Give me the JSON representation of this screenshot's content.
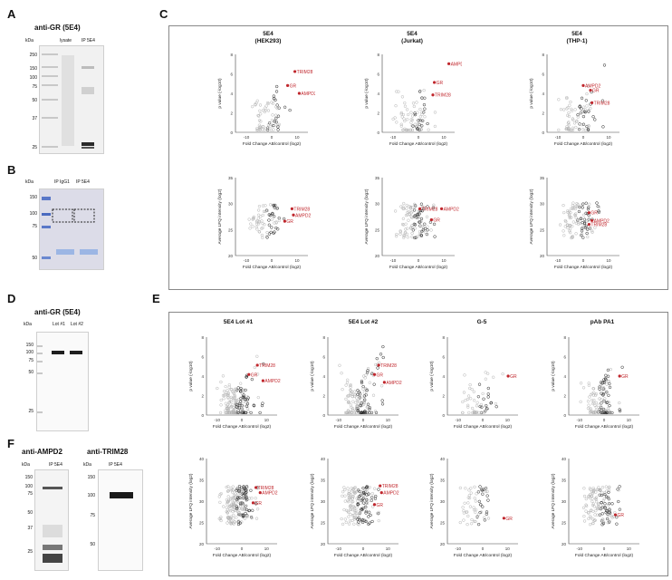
{
  "panels": {
    "A": {
      "letter": "A",
      "title": "anti-GR (5E4)",
      "kda": "kDa",
      "lanes": [
        "lysate",
        "IP 5E4"
      ],
      "mw": [
        "250",
        "150",
        "100",
        "75",
        "50",
        "37",
        "25"
      ]
    },
    "B": {
      "letter": "B",
      "kda": "kDa",
      "lanes": [
        "IP IgG1",
        "IP 5E4"
      ],
      "mw": [
        "150",
        "100",
        "75",
        "50"
      ]
    },
    "C": {
      "letter": "C",
      "plots": [
        {
          "head": "5E4",
          "sub": "(HEK293)"
        },
        {
          "head": "5E4",
          "sub": "(Jurkat)"
        },
        {
          "head": "5E4",
          "sub": "(THP-1)"
        }
      ]
    },
    "D": {
      "letter": "D",
      "title": "anti-GR (5E4)",
      "kda": "kDa",
      "lanes": [
        "Lot #1",
        "Lot #2"
      ],
      "mw": [
        "150",
        "100",
        "75",
        "50",
        "25"
      ]
    },
    "E": {
      "letter": "E",
      "heads": [
        "5E4 Lot #1",
        "5E4 Lot #2",
        "G-5",
        "pAb PA1"
      ]
    },
    "F": {
      "letter": "F",
      "title1": "anti-AMPD2",
      "title2": "anti-TRIM28",
      "kda": "kDa",
      "lane": "IP 5E4",
      "mw1": [
        "150",
        "100",
        "75",
        "50",
        "37",
        "25"
      ],
      "mw2": [
        "150",
        "100",
        "75",
        "50"
      ]
    }
  },
  "axes": {
    "volcano_x": "Fold Change AB/control (log2)",
    "volcano_y": "p value (-log10)",
    "lfq_y": "Average LFQ intensity (log2)"
  },
  "labels": {
    "gr": "GR",
    "trim28": "TRIM28",
    "ampd2": "AMPD2"
  },
  "colors": {
    "highlight": "#c0272d",
    "dark_point": "#222222",
    "light_point": "#b3b3b3"
  }
}
